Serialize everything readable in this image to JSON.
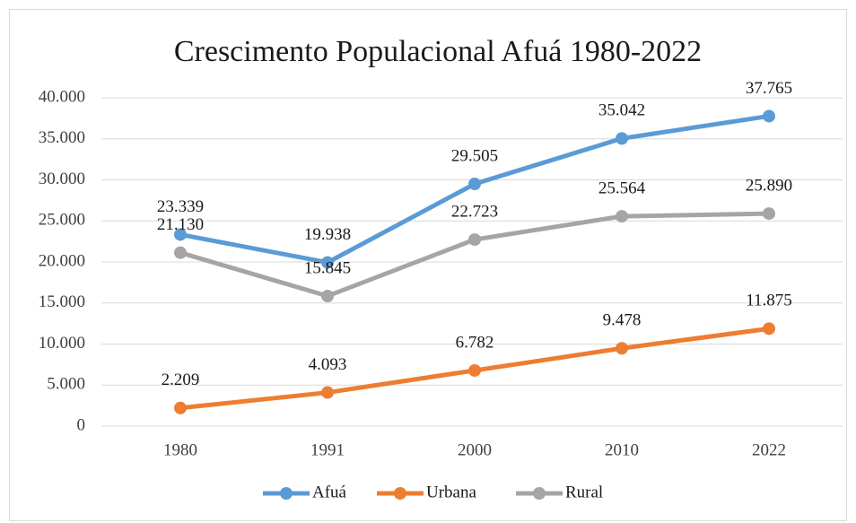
{
  "chart_data": {
    "type": "line",
    "title": "Crescimento Populacional Afuá 1980-2022",
    "categories": [
      "1980",
      "1991",
      "2000",
      "2010",
      "2022"
    ],
    "series": [
      {
        "name": "Afuá",
        "color": "#5b9bd5",
        "values": [
          23339,
          19938,
          29505,
          35042,
          37765
        ],
        "value_labels": [
          "23.339",
          "19.938",
          "29.505",
          "35.042",
          "37.765"
        ]
      },
      {
        "name": "Urbana",
        "color": "#ed7d31",
        "values": [
          2209,
          4093,
          6782,
          9478,
          11875
        ],
        "value_labels": [
          "2.209",
          "4.093",
          "6.782",
          "9.478",
          "11.875"
        ]
      },
      {
        "name": "Rural",
        "color": "#a5a5a5",
        "values": [
          21130,
          15845,
          22723,
          25564,
          25890
        ],
        "value_labels": [
          "21.130",
          "15.845",
          "22.723",
          "25.564",
          "25.890"
        ]
      }
    ],
    "ylim": [
      0,
      40000
    ],
    "yticks": [
      0,
      {
        "value": 5000,
        "label": "5.000"
      },
      {
        "value": 10000,
        "label": "10.000"
      },
      {
        "value": 15000,
        "label": "15.000"
      },
      {
        "value": 20000,
        "label": "20.000"
      },
      {
        "value": 25000,
        "label": "25.000"
      },
      {
        "value": 30000,
        "label": "30.000"
      },
      {
        "value": 35000,
        "label": "35.000"
      },
      {
        "value": 40000,
        "label": "40.000"
      }
    ],
    "grid": true,
    "legend": "bottom"
  }
}
